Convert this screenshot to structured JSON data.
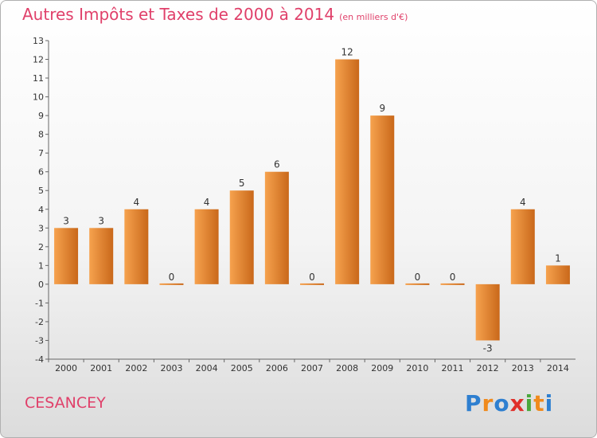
{
  "header": {
    "title": "Autres Impôts et Taxes de 2000 à 2014",
    "subtitle": "(en milliers d'€)"
  },
  "footer": {
    "place": "CESANCEY",
    "logo": "Proxiti",
    "logo_letters": [
      {
        "char": "P",
        "color": "#2e7fd0"
      },
      {
        "char": "r",
        "color": "#f08a1c"
      },
      {
        "char": "o",
        "color": "#2e7fd0"
      },
      {
        "char": "x",
        "color": "#e0302a"
      },
      {
        "char": "i",
        "color": "#4aa83c"
      },
      {
        "char": "t",
        "color": "#f08a1c"
      },
      {
        "char": "i",
        "color": "#2e7fd0"
      }
    ]
  },
  "colors": {
    "title": "#e0406a",
    "bar_light": "#f6a24e",
    "bar_dark": "#c9681a"
  },
  "chart_data": {
    "type": "bar",
    "title": "Autres Impôts et Taxes de 2000 à 2014",
    "subtitle": "(en milliers d'€)",
    "xlabel": "",
    "ylabel": "",
    "categories": [
      "2000",
      "2001",
      "2002",
      "2003",
      "2004",
      "2005",
      "2006",
      "2007",
      "2008",
      "2009",
      "2010",
      "2011",
      "2012",
      "2013",
      "2014"
    ],
    "values": [
      3,
      3,
      4,
      0,
      4,
      5,
      6,
      0,
      12,
      9,
      0,
      0,
      -3,
      4,
      1
    ],
    "data_labels": [
      "3",
      "3",
      "4",
      "0",
      "4",
      "5",
      "6",
      "0",
      "12",
      "9",
      "0",
      "0",
      "-3",
      "4",
      "1"
    ],
    "ylim": [
      -4,
      13
    ],
    "yticks": [
      -4,
      -3,
      -2,
      -1,
      0,
      1,
      2,
      3,
      4,
      5,
      6,
      7,
      8,
      9,
      10,
      11,
      12,
      13
    ],
    "grid": false,
    "legend": "none"
  }
}
